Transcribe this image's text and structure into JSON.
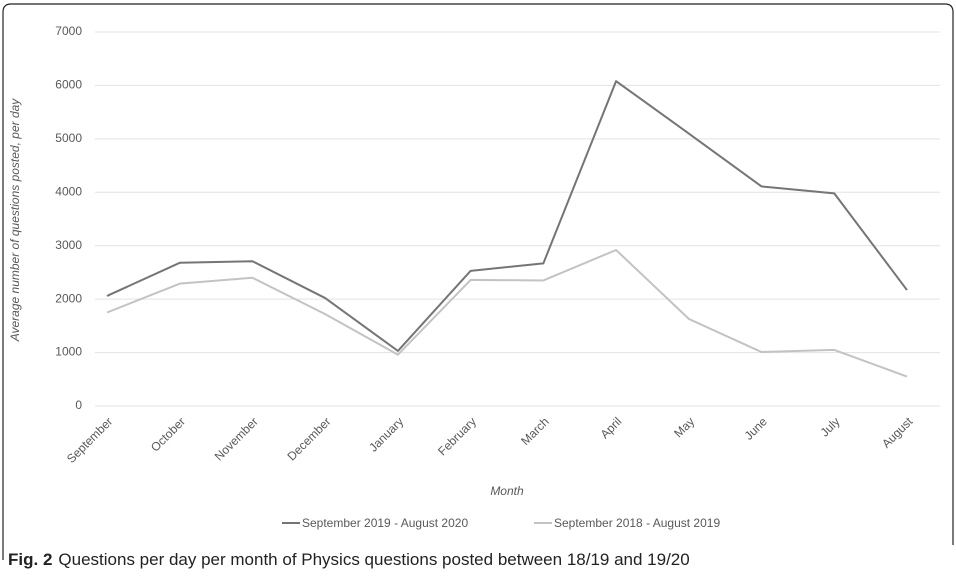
{
  "chart_data": {
    "type": "line",
    "y_label": "Average number of questions posted, per day",
    "x_label": "Month",
    "categories": [
      "September",
      "October",
      "November",
      "December",
      "January",
      "February",
      "March",
      "April",
      "May",
      "June",
      "July",
      "August"
    ],
    "series": [
      {
        "name": "September 2019 - August 2020",
        "color": "#757575",
        "values": [
          2060,
          2680,
          2710,
          2020,
          1030,
          2530,
          2670,
          6080,
          5100,
          4110,
          3980,
          2170
        ]
      },
      {
        "name": "September 2018 - August 2019",
        "color": "#c3c3c3",
        "values": [
          1750,
          2290,
          2400,
          1720,
          960,
          2360,
          2350,
          2920,
          1630,
          1010,
          1050,
          550
        ]
      }
    ],
    "ylim": [
      0,
      7000
    ],
    "yticks": [
      0,
      1000,
      2000,
      3000,
      4000,
      5000,
      6000,
      7000
    ],
    "grid": true,
    "legend": "bottom",
    "caption_label": "Fig. 2",
    "caption_text": "Questions per day per month of Physics questions posted between 18/19 and 19/20"
  }
}
